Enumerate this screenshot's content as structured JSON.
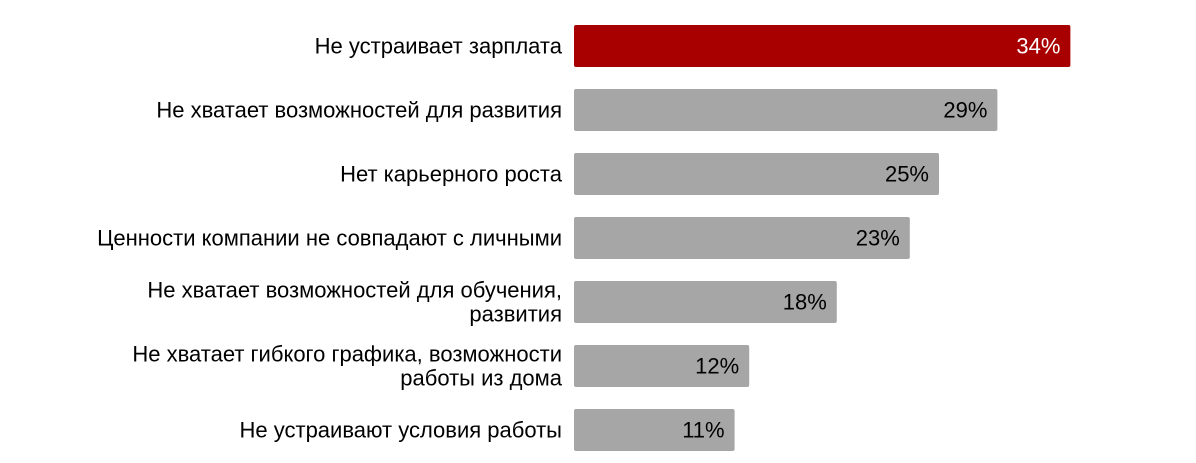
{
  "chart_data": {
    "type": "bar",
    "orientation": "horizontal",
    "title": "",
    "xlabel": "",
    "ylabel": "",
    "xlim": [
      0,
      35
    ],
    "grid": false,
    "legend": "none",
    "value_suffix": "%",
    "categories": [
      "Не устраивает зарплата",
      "Не хватает возможностей для развития",
      "Нет карьерного роста",
      "Ценности компании не совпадают с личными",
      "Не хватает возможностей для обучения, развития",
      "Не хватает гибкого графика, возможности работы из дома",
      "Не устраивают условия работы"
    ],
    "values": [
      34,
      29,
      25,
      23,
      18,
      12,
      11
    ],
    "data_labels": [
      "34%",
      "29%",
      "25%",
      "23%",
      "18%",
      "12%",
      "11%"
    ],
    "highlight_index": 0,
    "colors": {
      "highlight": "#a80000",
      "default": "#a6a6a6",
      "label_on_highlight": "#ffffff",
      "label_default": "#000000"
    }
  }
}
